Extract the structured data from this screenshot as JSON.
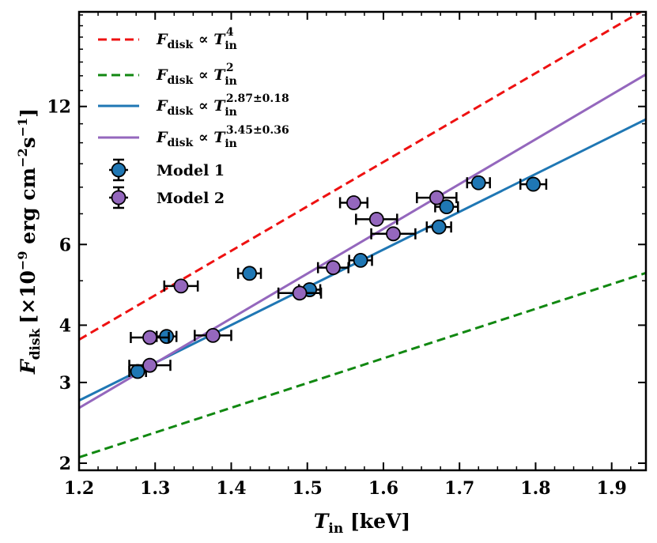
{
  "chart_data": {
    "type": "scatter",
    "title": "",
    "xlabel": {
      "var": "T",
      "sub": "in",
      "unit": " [keV]"
    },
    "ylabel": {
      "var": "F",
      "sub": "disk",
      "rest": "[×10",
      "exp": "−9",
      "unit": " erg cm",
      "exp2": "−2",
      "mid": "s",
      "exp3": "−1",
      "close": "]"
    },
    "xlim": [
      1.2,
      1.945
    ],
    "ylim": [
      1.93,
      19.3
    ],
    "yscale": "log",
    "x_ticks": [
      1.2,
      1.3,
      1.4,
      1.5,
      1.6,
      1.7,
      1.8,
      1.9
    ],
    "x_tick_labels": [
      "1.2",
      "1.3",
      "1.4",
      "1.5",
      "1.6",
      "1.7",
      "1.8",
      "1.9"
    ],
    "y_ticks": [
      2,
      3,
      4,
      6,
      12
    ],
    "y_tick_labels": [
      "2",
      "3",
      "4",
      "6",
      "12"
    ],
    "y_minor_ticks": [
      5,
      7,
      8,
      9,
      10,
      11,
      13,
      14,
      15,
      16,
      17,
      18,
      19
    ],
    "lines": [
      {
        "name": "T4",
        "legend": {
          "var": "F",
          "sub": "disk",
          "rel": " ∝ ",
          "var2": "T",
          "sub2": "in",
          "sup": "4"
        },
        "color": "#ee1111",
        "dash": true,
        "x": [
          1.2,
          1.945
        ],
        "y": [
          3.72,
          19.6
        ]
      },
      {
        "name": "T2",
        "legend": {
          "var": "F",
          "sub": "disk",
          "rel": " ∝ ",
          "var2": "T",
          "sub2": "in",
          "sup": "2"
        },
        "color": "#118811",
        "dash": true,
        "x": [
          1.2,
          1.945
        ],
        "y": [
          2.06,
          5.2
        ]
      },
      {
        "name": "fit1",
        "legend": {
          "var": "F",
          "sub": "disk",
          "rel": " ∝ ",
          "var2": "T",
          "sub2": "in",
          "sup": "2.87±0.18"
        },
        "color": "#1f77b4",
        "dash": false,
        "x": [
          1.2,
          1.945
        ],
        "y": [
          2.74,
          11.25
        ]
      },
      {
        "name": "fit2",
        "legend": {
          "var": "F",
          "sub": "disk",
          "rel": " ∝ ",
          "var2": "T",
          "sub2": "in",
          "sup": "3.45±0.36"
        },
        "color": "#9467bd",
        "dash": false,
        "x": [
          1.2,
          1.945
        ],
        "y": [
          2.64,
          14.1
        ]
      }
    ],
    "series": [
      {
        "name": "Model 1",
        "color": "#1f77b4",
        "points": [
          {
            "x": 1.277,
            "y": 3.17,
            "xerr": 0.011
          },
          {
            "x": 1.315,
            "y": 3.78,
            "xerr": 0.013
          },
          {
            "x": 1.424,
            "y": 5.19,
            "xerr": 0.015
          },
          {
            "x": 1.503,
            "y": 4.78,
            "xerr": 0.014
          },
          {
            "x": 1.57,
            "y": 5.54,
            "xerr": 0.015
          },
          {
            "x": 1.673,
            "y": 6.55,
            "xerr": 0.016
          },
          {
            "x": 1.683,
            "y": 7.25,
            "xerr": 0.015
          },
          {
            "x": 1.725,
            "y": 8.18,
            "xerr": 0.015
          },
          {
            "x": 1.797,
            "y": 8.12,
            "xerr": 0.017
          }
        ]
      },
      {
        "name": "Model 2",
        "color": "#9467bd",
        "points": [
          {
            "x": 1.293,
            "y": 3.27,
            "xerr": 0.027
          },
          {
            "x": 1.293,
            "y": 3.76,
            "xerr": 0.025
          },
          {
            "x": 1.334,
            "y": 4.87,
            "xerr": 0.022
          },
          {
            "x": 1.376,
            "y": 3.8,
            "xerr": 0.024
          },
          {
            "x": 1.49,
            "y": 4.7,
            "xerr": 0.028
          },
          {
            "x": 1.534,
            "y": 5.34,
            "xerr": 0.02
          },
          {
            "x": 1.561,
            "y": 7.4,
            "xerr": 0.018
          },
          {
            "x": 1.591,
            "y": 6.81,
            "xerr": 0.027
          },
          {
            "x": 1.613,
            "y": 6.33,
            "xerr": 0.029
          },
          {
            "x": 1.67,
            "y": 7.59,
            "xerr": 0.026
          }
        ]
      }
    ]
  }
}
